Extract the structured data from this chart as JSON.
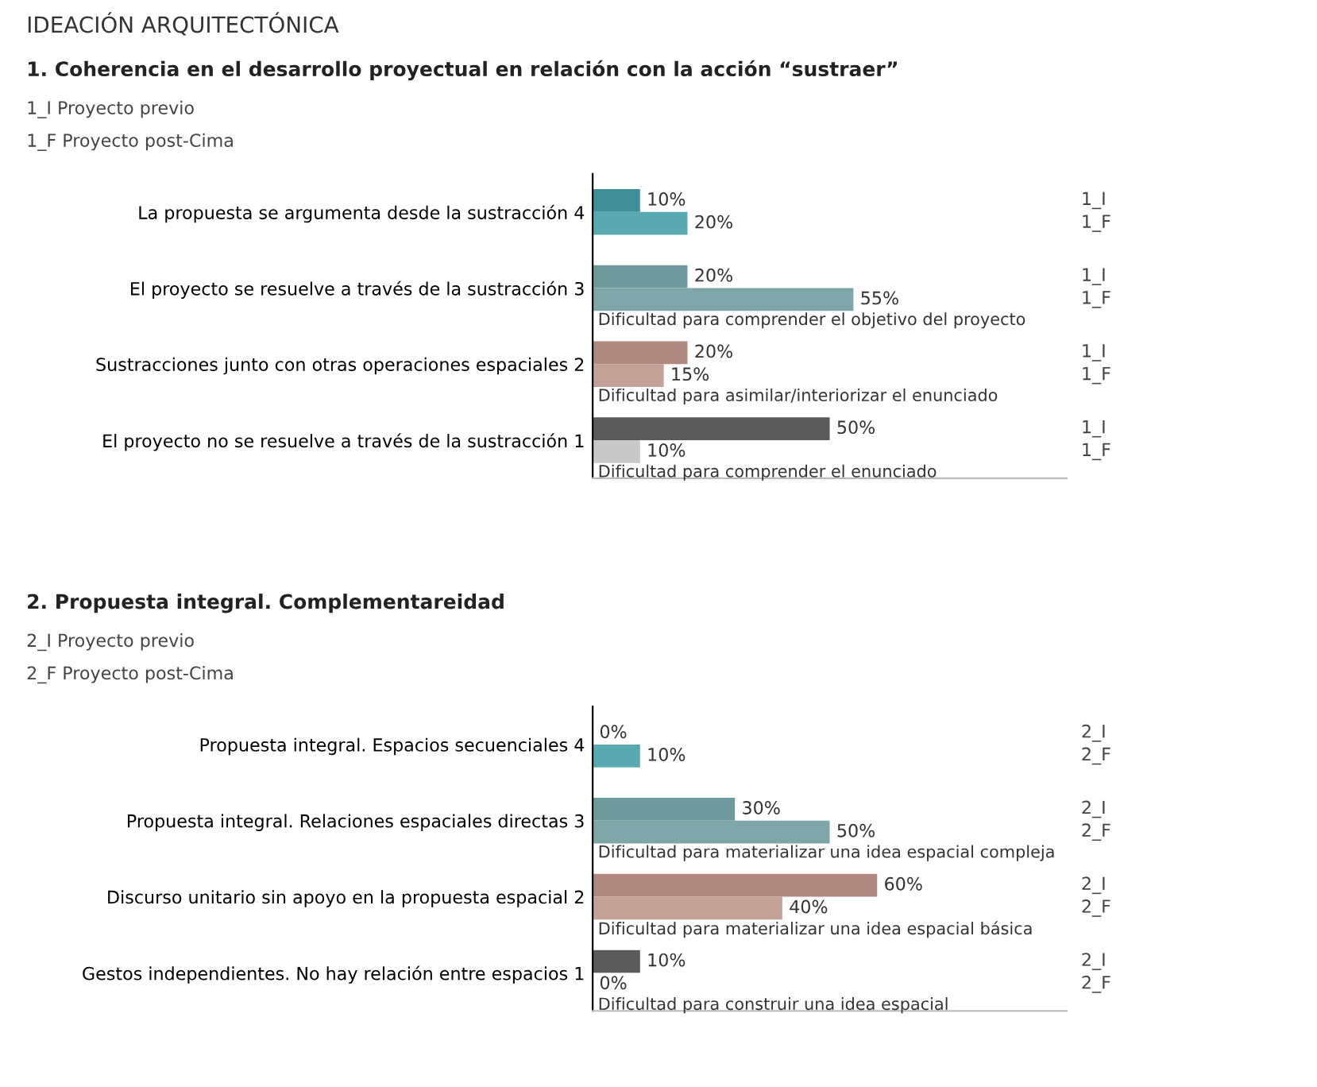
{
  "chart_data": [
    {
      "type": "bar",
      "orientation": "horizontal",
      "title": "1. Coherencia en el desarrollo proyectual en relación con la acción “sustraer”",
      "categories": [
        "La propuesta se argumenta desde la sustracción 4",
        "El proyecto se resuelve a través de la sustracción 3",
        "Sustracciones junto con otras operaciones espaciales 2",
        "El proyecto no se resuelve a través de la sustracción 1"
      ],
      "series": [
        {
          "name": "1_I",
          "colors": [
            "#3f8f9a",
            "#6f9a9c",
            "#b08a80",
            "#5a5a5a"
          ],
          "values": [
            10,
            20,
            20,
            50
          ],
          "value_labels": [
            "10%",
            "20%",
            "20%",
            "50%"
          ]
        },
        {
          "name": "1_F",
          "colors": [
            "#5aa9b0",
            "#7fa6a8",
            "#c4a196",
            "#c9c9c9"
          ],
          "values": [
            20,
            55,
            15,
            10
          ],
          "value_labels": [
            "20%",
            "55%",
            "15%",
            "10%"
          ]
        }
      ],
      "xlim": [
        0,
        100
      ],
      "tick_labels": false,
      "annotations": [
        "IDEACIÓN ARQUITECTÓNICA",
        "1_I Proyecto previo",
        "1_F Proyecto post-Cima",
        "Dificultad para comprender el objetivo del proyecto",
        "Dificultad para asimilar/interiorizar el enunciado",
        "Dificultad para comprender el enunciado"
      ]
    },
    {
      "type": "bar",
      "orientation": "horizontal",
      "title": "2. Propuesta integral. Complementareidad",
      "categories": [
        "Propuesta integral. Espacios secuenciales 4",
        "Propuesta integral. Relaciones espaciales directas 3",
        "Discurso unitario sin apoyo en la propuesta espacial 2",
        "Gestos independientes. No hay relación entre espacios 1"
      ],
      "series": [
        {
          "name": "2_I",
          "colors": [
            "#3f8f9a",
            "#6f9a9c",
            "#b08a80",
            "#5a5a5a"
          ],
          "values": [
            0,
            30,
            60,
            10
          ],
          "value_labels": [
            "0%",
            "30%",
            "60%",
            "10%"
          ]
        },
        {
          "name": "2_F",
          "colors": [
            "#5aa9b0",
            "#7fa6a8",
            "#c4a196",
            "#c9c9c9"
          ],
          "values": [
            10,
            50,
            40,
            0
          ],
          "value_labels": [
            "10%",
            "50%",
            "40%",
            "0%"
          ]
        }
      ],
      "xlim": [
        0,
        100
      ],
      "tick_labels": false,
      "annotations": [
        "2_I Proyecto previo",
        "2_F Proyecto post-Cima",
        "Dificultad para materializar una idea espacial compleja",
        "Dificultad para materializar una idea espacial básica",
        "Dificultad para construir una idea espacial"
      ]
    }
  ]
}
